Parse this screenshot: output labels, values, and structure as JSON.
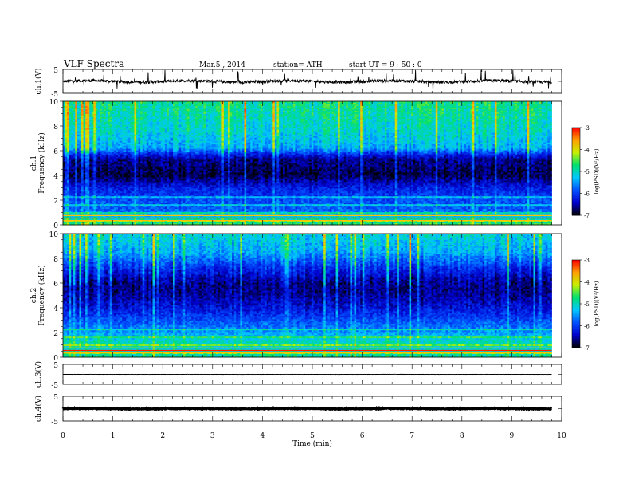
{
  "header": {
    "title": "VLF  Spectra",
    "date": "Mar.5  , 2014",
    "station": "station= ATH",
    "start": "start  UT  =    9  : 50 : 0"
  },
  "colors": {
    "spectrogram_scale": [
      "#000000",
      "#0000cc",
      "#0050ff",
      "#00c8ff",
      "#00e070",
      "#c8f000",
      "#ffa000",
      "#ff0000",
      "#ffffff"
    ]
  },
  "chart_data": [
    {
      "id": "ch1-waveform",
      "type": "line",
      "ylabel": "ch.1(V)",
      "ylim": [
        -5,
        5
      ],
      "yticks": [
        "5",
        "-5"
      ],
      "xlim": [
        0,
        10
      ],
      "trace_level": 0,
      "trace_noise": 0.6,
      "data_end": 9.8
    },
    {
      "id": "ch1-spectrogram",
      "type": "heatmap",
      "ylabel": "ch.1\nFrequency  (kHz)",
      "ylim": [
        0,
        10
      ],
      "yticks": [
        "0",
        "2",
        "4",
        "6",
        "8",
        "10"
      ],
      "xlim": [
        0,
        10
      ],
      "colorbar": {
        "label": "log(PSD)(V²/Hz)",
        "range": [
          -7,
          -3
        ],
        "ticks": [
          "-3",
          "-4",
          "-5",
          "-6",
          "-7"
        ]
      },
      "profile_khz": [
        0,
        0.5,
        1.2,
        2,
        3,
        4,
        5.3,
        5.8,
        6.2,
        7.5,
        9,
        10
      ],
      "profile_logpsd": [
        -4.6,
        -5.0,
        -5.8,
        -5.9,
        -6.2,
        -6.8,
        -6.6,
        -6.0,
        -5.4,
        -5.1,
        -4.9,
        -4.8
      ]
    },
    {
      "id": "ch2-spectrogram",
      "type": "heatmap",
      "ylabel": "ch.2\nFrequency  (kHz)",
      "ylim": [
        0,
        10
      ],
      "yticks": [
        "0",
        "2",
        "4",
        "6",
        "8",
        "10"
      ],
      "xlim": [
        0,
        10
      ],
      "colorbar": {
        "label": "log(PSD)(V²/Hz)",
        "range": [
          -7,
          -3
        ],
        "ticks": [
          "-3",
          "-4",
          "-5",
          "-6",
          "-7"
        ]
      },
      "profile_khz": [
        0,
        0.5,
        1.2,
        2,
        3,
        4,
        5.2,
        6,
        7,
        8.5,
        10
      ],
      "profile_logpsd": [
        -4.8,
        -5.1,
        -5.0,
        -5.5,
        -5.9,
        -6.3,
        -6.6,
        -6.6,
        -6.2,
        -5.4,
        -5.1
      ]
    },
    {
      "id": "ch3-waveform",
      "type": "line",
      "ylabel": "ch.3(V)",
      "ylim": [
        -5,
        5
      ],
      "yticks": [
        "5",
        "-5"
      ],
      "xlim": [
        0,
        10
      ],
      "trace_level": 0,
      "trace_noise": 0.05,
      "data_end": 9.8
    },
    {
      "id": "ch4-waveform",
      "type": "line",
      "ylabel": "ch.4(V)",
      "ylim": [
        -5,
        5
      ],
      "yticks": [
        "5",
        "-5"
      ],
      "xlim": [
        0,
        10
      ],
      "trace_level": 0,
      "trace_noise": 0.15,
      "data_end": 9.8
    }
  ],
  "x_axis": {
    "label": "Time  (min)",
    "ticks": [
      "0",
      "1",
      "2",
      "3",
      "4",
      "5",
      "6",
      "7",
      "8",
      "9",
      "10"
    ]
  }
}
